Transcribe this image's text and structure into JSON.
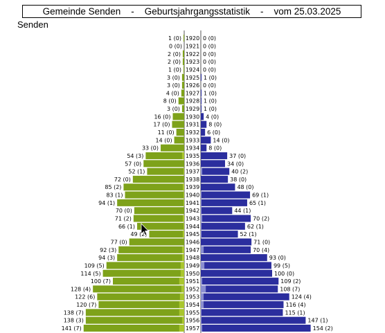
{
  "header": {
    "title": "Gemeinde Senden    -    Geburtsjahrgangsstatistik    -    vom 25.03.2025",
    "place": "Senden"
  },
  "colors": {
    "left_bar": "#7ea21a",
    "left_bar_light": "#a9c62e",
    "right_bar": "#2b2e9e",
    "right_bar_light": "#8a8ed0"
  },
  "chart_data": {
    "type": "bar",
    "orientation": "horizontal",
    "layout": "population pyramid",
    "categories": [
      "1920",
      "1921",
      "1922",
      "1923",
      "1924",
      "1925",
      "1926",
      "1927",
      "1928",
      "1929",
      "1930",
      "1931",
      "1932",
      "1933",
      "1934",
      "1935",
      "1936",
      "1937",
      "1938",
      "1939",
      "1940",
      "1941",
      "1942",
      "1943",
      "1944",
      "1945",
      "1946",
      "1947",
      "1948",
      "1949",
      "1950",
      "1951",
      "1952",
      "1953",
      "1954",
      "1955",
      "1956",
      "1957"
    ],
    "series": [
      {
        "side": "left",
        "values": [
          1,
          0,
          2,
          2,
          1,
          3,
          3,
          4,
          8,
          3,
          16,
          17,
          11,
          14,
          33,
          54,
          57,
          52,
          72,
          85,
          83,
          94,
          70,
          71,
          66,
          49,
          77,
          92,
          94,
          109,
          114,
          100,
          128,
          122,
          120,
          138,
          138,
          141
        ],
        "sub_values": [
          0,
          0,
          0,
          0,
          0,
          0,
          0,
          0,
          0,
          0,
          0,
          0,
          0,
          0,
          0,
          3,
          0,
          1,
          0,
          2,
          1,
          1,
          0,
          2,
          1,
          2,
          0,
          3,
          3,
          5,
          5,
          7,
          4,
          6,
          7,
          7,
          3,
          7
        ]
      },
      {
        "side": "right",
        "values": [
          0,
          0,
          0,
          0,
          0,
          1,
          0,
          1,
          1,
          1,
          4,
          8,
          6,
          14,
          8,
          37,
          34,
          40,
          38,
          48,
          69,
          65,
          44,
          70,
          62,
          52,
          71,
          70,
          93,
          99,
          100,
          109,
          108,
          124,
          116,
          115,
          147,
          154
        ],
        "sub_values": [
          0,
          0,
          0,
          0,
          0,
          0,
          0,
          0,
          0,
          0,
          0,
          0,
          0,
          0,
          0,
          0,
          0,
          2,
          0,
          0,
          1,
          1,
          1,
          2,
          1,
          1,
          0,
          4,
          0,
          5,
          0,
          2,
          7,
          4,
          4,
          1,
          1,
          2
        ]
      }
    ],
    "label_format": "value (sub_value)"
  }
}
